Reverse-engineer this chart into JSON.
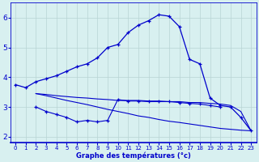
{
  "xlabel": "Graphe des températures (°c)",
  "background_color": "#d8f0f0",
  "line_color": "#0000cc",
  "grid_color": "#b8d4d4",
  "xlim": [
    -0.5,
    23.5
  ],
  "ylim": [
    1.8,
    6.5
  ],
  "yticks": [
    2,
    3,
    4,
    5,
    6
  ],
  "xticks": [
    0,
    1,
    2,
    3,
    4,
    5,
    6,
    7,
    8,
    9,
    10,
    11,
    12,
    13,
    14,
    15,
    16,
    17,
    18,
    19,
    20,
    21,
    22,
    23
  ],
  "line1_x": [
    0,
    1,
    2,
    3,
    4,
    5,
    6,
    7,
    8,
    9,
    10,
    11,
    12,
    13,
    14,
    15,
    16,
    17,
    18,
    19,
    20,
    21,
    22,
    23
  ],
  "line1_y": [
    3.75,
    3.65,
    3.85,
    3.95,
    4.05,
    4.2,
    4.35,
    4.45,
    4.65,
    5.0,
    5.1,
    5.5,
    5.75,
    5.9,
    6.1,
    6.05,
    5.7,
    4.6,
    4.45,
    3.3,
    3.05,
    3.0,
    2.65,
    2.2
  ],
  "line2_x": [
    2,
    3,
    4,
    5,
    6,
    7,
    8,
    9,
    10,
    11,
    12,
    13,
    14,
    15,
    16,
    17,
    18,
    19,
    20,
    21,
    22,
    23
  ],
  "line2_y": [
    3.45,
    3.42,
    3.38,
    3.35,
    3.32,
    3.3,
    3.27,
    3.25,
    3.22,
    3.22,
    3.22,
    3.2,
    3.2,
    3.18,
    3.18,
    3.15,
    3.15,
    3.12,
    3.1,
    3.05,
    2.85,
    2.2
  ],
  "line3_x": [
    2,
    3,
    4,
    5,
    6,
    7,
    8,
    9,
    10,
    11,
    12,
    13,
    14,
    15,
    16,
    17,
    18,
    19,
    20
  ],
  "line3_y": [
    3.0,
    2.85,
    2.75,
    2.65,
    2.5,
    2.55,
    2.5,
    2.55,
    3.25,
    3.2,
    3.2,
    3.18,
    3.18,
    3.18,
    3.15,
    3.12,
    3.1,
    3.05,
    3.0
  ],
  "line4_x": [
    2,
    3,
    4,
    5,
    6,
    7,
    8,
    9,
    10,
    11,
    12,
    13,
    14,
    15,
    16,
    17,
    18,
    19,
    20,
    21,
    22,
    23
  ],
  "line4_y": [
    3.45,
    3.38,
    3.3,
    3.22,
    3.15,
    3.08,
    3.0,
    2.92,
    2.85,
    2.78,
    2.7,
    2.65,
    2.58,
    2.52,
    2.48,
    2.43,
    2.38,
    2.33,
    2.28,
    2.25,
    2.22,
    2.2
  ],
  "xlabel_fontsize": 6.0,
  "tick_fontsize_x": 5.0,
  "tick_fontsize_y": 6.5
}
